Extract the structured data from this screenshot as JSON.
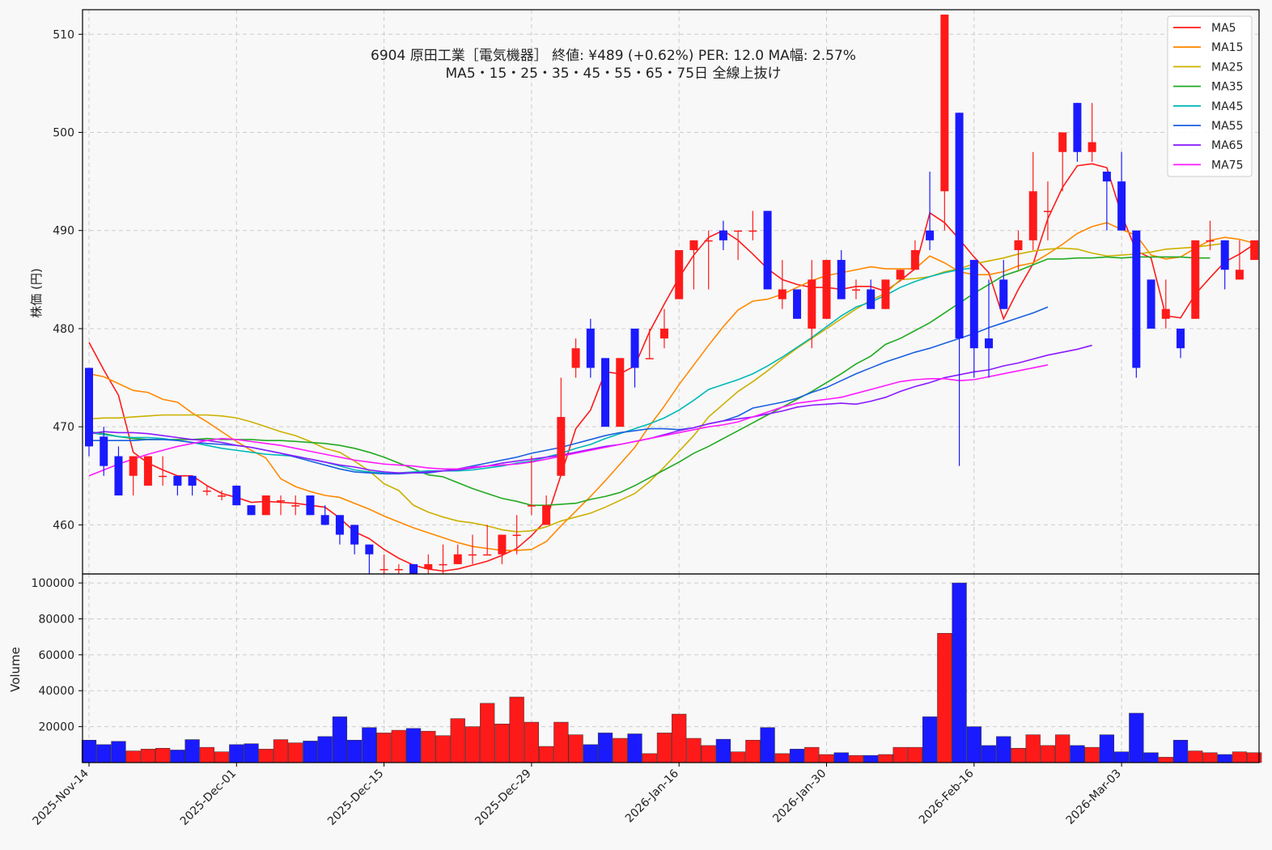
{
  "chart_data": {
    "type": "candlestick",
    "title_line1": "6904  原田工業［電気機器］ 終値: ¥489 (+0.62%)   PER: 12.0  MA幅: 2.57%",
    "title_line2": "MA5・15・25・35・45・55・65・75日 全線上抜け",
    "ylabel": "株価 (円)",
    "volume_ylabel": "Volume",
    "price_ylim": [
      455,
      512.5
    ],
    "price_ticks": [
      460,
      470,
      480,
      490,
      500,
      510
    ],
    "volume_ylim": [
      0,
      105000
    ],
    "volume_ticks": [
      20000,
      40000,
      60000,
      80000,
      100000
    ],
    "grid": true,
    "legend_position": "top-right",
    "x_tick_labels": [
      {
        "label": "2025-Nov-14",
        "index": 0
      },
      {
        "label": "2025-Dec-01",
        "index": 10
      },
      {
        "label": "2025-Dec-15",
        "index": 20
      },
      {
        "label": "2025-Dec-29",
        "index": 30
      },
      {
        "label": "2026-Jan-16",
        "index": 40
      },
      {
        "label": "2026-Jan-30",
        "index": 50
      },
      {
        "label": "2026-Feb-16",
        "index": 60
      },
      {
        "label": "2026-Mar-03",
        "index": 70
      }
    ],
    "up_color": "#ff1a1a",
    "down_color": "#1a1aff",
    "ohlc": [
      [
        476,
        476,
        467,
        468
      ],
      [
        469,
        470,
        465,
        466
      ],
      [
        467,
        468,
        463,
        463
      ],
      [
        465,
        467,
        463,
        467
      ],
      [
        464,
        467,
        464,
        467
      ],
      [
        465,
        467,
        464,
        465
      ],
      [
        465,
        465,
        463,
        464
      ],
      [
        465,
        465,
        463,
        464
      ],
      [
        463.5,
        464,
        463,
        463.5
      ],
      [
        463,
        463.5,
        462.5,
        463
      ],
      [
        464,
        464,
        462,
        462
      ],
      [
        462,
        462,
        461,
        461
      ],
      [
        461,
        463,
        461,
        463
      ],
      [
        462.5,
        463,
        461,
        462.5
      ],
      [
        462,
        463,
        461,
        462
      ],
      [
        463,
        463,
        461,
        461
      ],
      [
        461,
        462,
        460,
        460
      ],
      [
        461,
        461,
        458,
        459
      ],
      [
        460,
        460,
        457,
        458
      ],
      [
        458,
        458,
        455,
        457
      ],
      [
        455.5,
        457,
        455,
        455.5
      ],
      [
        455.5,
        456,
        455,
        455.5
      ],
      [
        456,
        456,
        455,
        455
      ],
      [
        455.5,
        457,
        455,
        456
      ],
      [
        456,
        458,
        455,
        456
      ],
      [
        456,
        458,
        456,
        457
      ],
      [
        457,
        459,
        456,
        457
      ],
      [
        457,
        460,
        457,
        457
      ],
      [
        457,
        459,
        456,
        459
      ],
      [
        459,
        461,
        457,
        459
      ],
      [
        462,
        467,
        461,
        462
      ],
      [
        460,
        463,
        460,
        462
      ],
      [
        465,
        475,
        465,
        471
      ],
      [
        476,
        479,
        475,
        478
      ],
      [
        480,
        481,
        475,
        476
      ],
      [
        477,
        477,
        470,
        470
      ],
      [
        470,
        477,
        470,
        477
      ],
      [
        480,
        480,
        474,
        476
      ],
      [
        477,
        480,
        477,
        477
      ],
      [
        479,
        482,
        478,
        480
      ],
      [
        483,
        488,
        483,
        488
      ],
      [
        488,
        489,
        484,
        489
      ],
      [
        489,
        490,
        484,
        489
      ],
      [
        490,
        491,
        488,
        489
      ],
      [
        490,
        490,
        487,
        490
      ],
      [
        490,
        492,
        489,
        490
      ],
      [
        492,
        492,
        484,
        484
      ],
      [
        483,
        487,
        482,
        484
      ],
      [
        484,
        484,
        481,
        481
      ],
      [
        480,
        487,
        478,
        485
      ],
      [
        481,
        487,
        481,
        487
      ],
      [
        487,
        488,
        483,
        483
      ],
      [
        484,
        485,
        483,
        484
      ],
      [
        484,
        485,
        482,
        482
      ],
      [
        482,
        485,
        482,
        485
      ],
      [
        485,
        486,
        485,
        486
      ],
      [
        486,
        489,
        486,
        488
      ],
      [
        490,
        496,
        488,
        489
      ],
      [
        494,
        512,
        490,
        512
      ],
      [
        502,
        502,
        466,
        479
      ],
      [
        487,
        487,
        475,
        478
      ],
      [
        479,
        485,
        475,
        478
      ],
      [
        485,
        487,
        482,
        482
      ],
      [
        488,
        490,
        486,
        489
      ],
      [
        489,
        498,
        488,
        494
      ],
      [
        492,
        495,
        489,
        492
      ],
      [
        498,
        500,
        494,
        500
      ],
      [
        503,
        503,
        497,
        498
      ],
      [
        498,
        503,
        497,
        499
      ],
      [
        496,
        496,
        490,
        495
      ],
      [
        495,
        498,
        490,
        490
      ],
      [
        490,
        490,
        475,
        476
      ],
      [
        485,
        485,
        480,
        480
      ],
      [
        481,
        485,
        480,
        482
      ],
      [
        480,
        480,
        477,
        478
      ],
      [
        481,
        489,
        481,
        489
      ],
      [
        489,
        491,
        488,
        489
      ],
      [
        489,
        489,
        484,
        486
      ],
      [
        485,
        489,
        485,
        486
      ],
      [
        487,
        489,
        487,
        489
      ]
    ],
    "volume": [
      12500,
      10000,
      11800,
      6500,
      7500,
      8000,
      7000,
      12800,
      8500,
      6000,
      10000,
      10500,
      7500,
      12800,
      11000,
      12000,
      14500,
      25500,
      12500,
      19500,
      16500,
      18000,
      19000,
      17500,
      15000,
      24500,
      20000,
      33000,
      21500,
      36500,
      22500,
      9000,
      22500,
      15500,
      10000,
      16500,
      13500,
      16000,
      5000,
      16500,
      27000,
      13500,
      9500,
      13000,
      6000,
      12500,
      19500,
      5000,
      7500,
      8500,
      4500,
      5500,
      4000,
      4000,
      4500,
      8500,
      8500,
      25500,
      72000,
      100000,
      20000,
      9500,
      14500,
      8000,
      15500,
      9500,
      15500,
      9500,
      8500,
      15500,
      6000,
      27500,
      5500,
      3000,
      12500,
      6500,
      5500,
      4500,
      6000,
      5500
    ],
    "ma_series": [
      {
        "name": "MA5",
        "color": "#ff1a1a",
        "values": [
          478.6,
          475.8,
          473.2,
          467.4,
          466.3,
          465.6,
          465,
          465,
          464,
          463.2,
          462.8,
          462.3,
          462.4,
          462.3,
          462.2,
          462,
          461.8,
          460.7,
          459.3,
          458.6,
          457.5,
          456.6,
          455.9,
          455.5,
          455.3,
          455.5,
          455.9,
          456.3,
          456.9,
          457.6,
          458.9,
          460.5,
          465.1,
          469.8,
          471.7,
          475.6,
          475.4,
          476.2,
          479.7,
          482.5,
          485.2,
          487.5,
          489.3,
          490,
          489,
          487.6,
          486.1,
          485,
          484.5,
          484.2,
          484.2,
          484,
          484.3,
          484.3,
          483.8,
          484.9,
          486.1,
          491.8,
          490.8,
          489.1,
          487.3,
          485.7,
          481,
          484,
          486.6,
          491.2,
          494.4,
          496.6,
          496.8,
          496.4,
          491.6,
          487.9,
          487.2,
          481.3,
          481.1,
          483.5,
          485.2,
          486.8,
          487.6,
          488.6
        ]
      },
      {
        "name": "MA15",
        "color": "#ff8800",
        "values": [
          475.4,
          475.1,
          474.4,
          473.7,
          473.5,
          472.8,
          472.5,
          471.4,
          470.5,
          469.5,
          468.5,
          467.6,
          466.8,
          464.7,
          463.9,
          463.4,
          463,
          462.8,
          462.2,
          461.6,
          460.9,
          460.3,
          459.7,
          459.2,
          458.7,
          458.2,
          457.8,
          457.6,
          457.4,
          457.4,
          457.5,
          458.3,
          459.9,
          461.4,
          462.9,
          464.5,
          466.2,
          467.9,
          470.1,
          472.1,
          474.3,
          476.3,
          478.3,
          480.2,
          481.9,
          482.8,
          483,
          483.5,
          484.2,
          484.9,
          485.4,
          485.7,
          486,
          486.3,
          486.1,
          486.1,
          486.1,
          487.4,
          486.7,
          485.8,
          485.5,
          485.5,
          485.8,
          486.4,
          486.7,
          487.6,
          488.6,
          489.7,
          490.4,
          490.8,
          490.1,
          489.5,
          487.5,
          487.1,
          487.3,
          488.2,
          489,
          489.3,
          489.1,
          488.7
        ]
      },
      {
        "name": "MA25",
        "color": "#ccb000",
        "values": [
          470.8,
          470.9,
          470.9,
          471,
          471.1,
          471.2,
          471.2,
          471.2,
          471.2,
          471.1,
          470.9,
          470.5,
          470,
          469.5,
          469.1,
          468.5,
          467.8,
          467.4,
          466.5,
          465.5,
          464.2,
          463.5,
          462,
          461.3,
          460.8,
          460.4,
          460.2,
          459.9,
          459.5,
          459.3,
          459.4,
          459.8,
          460.4,
          460.8,
          461.2,
          461.8,
          462.5,
          463.2,
          464.4,
          465.9,
          467.5,
          469.1,
          471,
          472.3,
          473.6,
          474.6,
          475.7,
          476.9,
          478,
          479,
          480,
          481,
          482,
          482.9,
          483.6,
          485,
          485.1,
          485.3,
          485.8,
          486.1,
          486.6,
          486.9,
          487.2,
          487.6,
          487.9,
          488.1,
          488.2,
          488.1,
          487.7,
          487.4,
          487.5,
          487.6,
          487.8,
          488.1,
          488.2,
          488.3,
          488.5,
          488.7
        ]
      },
      {
        "name": "MA35",
        "color": "#22aa22",
        "values": [
          469.5,
          469.3,
          469,
          468.8,
          468.7,
          468.7,
          468.7,
          468.7,
          468.8,
          468.7,
          468.7,
          468.7,
          468.6,
          468.6,
          468.5,
          468.4,
          468.3,
          468.1,
          467.8,
          467.4,
          466.9,
          466.3,
          465.7,
          465.1,
          464.9,
          464.3,
          463.7,
          463.2,
          462.7,
          462.4,
          462,
          462,
          462.1,
          462.2,
          462.6,
          462.9,
          463.3,
          464,
          464.8,
          465.6,
          466.4,
          467.3,
          468,
          468.8,
          469.6,
          470.4,
          471.2,
          472,
          472.8,
          473.6,
          474.5,
          475.4,
          476.4,
          477.2,
          478.4,
          479,
          479.8,
          480.6,
          481.6,
          482.6,
          483.6,
          484.5,
          485.4,
          485.9,
          486.5,
          487.1,
          487.1,
          487.2,
          487.2,
          487.3,
          487.2,
          487.3,
          487.3,
          487.3,
          487.3,
          487.2,
          487.2
        ]
      },
      {
        "name": "MA45",
        "color": "#00b8b8",
        "values": [
          469.4,
          469.2,
          469,
          468.9,
          468.9,
          468.8,
          468.6,
          468.4,
          468.1,
          467.8,
          467.6,
          467.4,
          467.2,
          467.1,
          467,
          466.7,
          466.4,
          466,
          465.6,
          465.4,
          465.3,
          465.3,
          465.4,
          465.5,
          465.5,
          465.5,
          465.6,
          465.8,
          466,
          466.3,
          466.5,
          466.9,
          467.3,
          467.8,
          468.2,
          468.8,
          469.3,
          469.8,
          470.3,
          470.9,
          471.7,
          472.7,
          473.8,
          474.3,
          474.8,
          475.4,
          476.2,
          477.1,
          478.1,
          479.1,
          480.2,
          481.3,
          482.2,
          482.7,
          483.4,
          484.2,
          484.8,
          485.3,
          485.7,
          486,
          486.2
        ]
      },
      {
        "name": "MA55",
        "color": "#1a5fe0",
        "values": [
          468.6,
          468.6,
          468.6,
          468.6,
          468.7,
          468.7,
          468.6,
          468.4,
          468.3,
          468.2,
          468.1,
          467.9,
          467.6,
          467.3,
          466.9,
          466.5,
          466.1,
          465.7,
          465.4,
          465.3,
          465.2,
          465.2,
          465.3,
          465.3,
          465.5,
          465.7,
          466,
          466.3,
          466.6,
          466.9,
          467.3,
          467.6,
          467.9,
          468.3,
          468.7,
          469.1,
          469.4,
          469.6,
          469.8,
          469.8,
          469.7,
          469.9,
          470.3,
          470.6,
          471.1,
          471.9,
          472.2,
          472.5,
          472.9,
          473.5,
          474,
          474.7,
          475.4,
          476,
          476.6,
          477.1,
          477.6,
          478,
          478.5,
          479,
          479.5,
          480.1,
          480.6,
          481.1,
          481.6,
          482.2
        ]
      },
      {
        "name": "MA65",
        "color": "#8b1aff",
        "values": [
          469.3,
          469.5,
          469.4,
          469.4,
          469.3,
          469.1,
          468.9,
          468.7,
          468.6,
          468.4,
          468.1,
          467.9,
          467.6,
          467.3,
          467,
          466.7,
          466.4,
          466.1,
          465.9,
          465.6,
          465.4,
          465.3,
          465.3,
          465.4,
          465.5,
          465.6,
          465.8,
          466,
          466.3,
          466.5,
          466.7,
          466.9,
          467.1,
          467.4,
          467.7,
          468,
          468.2,
          468.5,
          468.8,
          469.2,
          469.6,
          469.9,
          470.3,
          470.6,
          470.8,
          471,
          471.3,
          471.6,
          472,
          472.2,
          472.3,
          472.4,
          472.3,
          472.6,
          473,
          473.6,
          474.1,
          474.5,
          475,
          475.3,
          475.6,
          475.8,
          476.2,
          476.5,
          476.9,
          477.3,
          477.6,
          477.9,
          478.3
        ]
      },
      {
        "name": "MA75",
        "color": "#ff1aff",
        "values": [
          465,
          465.6,
          466.2,
          466.7,
          467.2,
          467.6,
          468,
          468.3,
          468.6,
          468.8,
          468.7,
          468.5,
          468.3,
          468.1,
          467.8,
          467.5,
          467.2,
          466.9,
          466.6,
          466.4,
          466.2,
          466.1,
          466,
          465.8,
          465.7,
          465.7,
          465.9,
          466,
          466.1,
          466.2,
          466.4,
          466.7,
          467,
          467.3,
          467.6,
          467.9,
          468.2,
          468.5,
          468.8,
          469.1,
          469.4,
          469.7,
          470,
          470.2,
          470.5,
          471,
          471.5,
          472,
          472.4,
          472.6,
          472.8,
          473,
          473.4,
          473.8,
          474.2,
          474.6,
          474.8,
          474.9,
          474.9,
          474.7,
          474.8,
          475.1,
          475.4,
          475.7,
          476,
          476.3
        ]
      }
    ]
  }
}
